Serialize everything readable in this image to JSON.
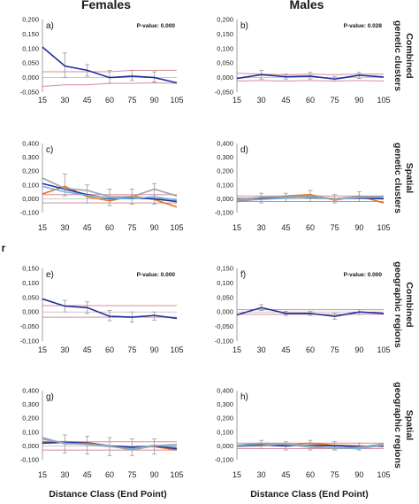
{
  "figure": {
    "col_titles": [
      "Females",
      "Males"
    ],
    "row_titles": [
      [
        "Combined",
        "genetic clusters"
      ],
      [
        "Spatial",
        "genetic clusters"
      ],
      [
        "Combined",
        "geographic regions"
      ],
      [
        "Spatial",
        "geographic regions"
      ]
    ],
    "x_axis_title": "Distance Class (End Point)",
    "y_axis_symbol": "r",
    "colors": {
      "dark_blue": "#1f2f9e",
      "orange": "#e8731e",
      "light_blue": "#6fb3e0",
      "gray": "#9aa3ad",
      "confidence": "#d98b9a"
    }
  },
  "chart_data": [
    {
      "type": "line",
      "label": "a)",
      "pvalue": "P-value: 0.000",
      "x": [
        15,
        30,
        45,
        60,
        75,
        90,
        105
      ],
      "ylim": [
        -0.05,
        0.2
      ],
      "yticks": [
        "0,200",
        "0,150",
        "0,100",
        "0,050",
        "0,000",
        "-0,050"
      ],
      "series": [
        {
          "color": "#1f2f9e",
          "values": [
            0.105,
            0.04,
            0.025,
            0.0,
            0.005,
            0.0,
            -0.018
          ]
        }
      ],
      "error_bars": [
        [
          null,
          null
        ],
        [
          0.0,
          0.085
        ],
        [
          0.005,
          0.045
        ],
        [
          -0.02,
          0.025
        ],
        [
          -0.01,
          0.025
        ],
        [
          -0.015,
          0.02
        ],
        [
          null,
          null
        ]
      ],
      "confidence": [
        [
          0.02,
          0.02,
          0.02,
          0.02,
          0.025,
          0.025,
          0.025
        ],
        [
          -0.03,
          -0.025,
          -0.025,
          -0.02,
          -0.02,
          -0.018,
          -0.02
        ]
      ]
    },
    {
      "type": "line",
      "label": "b)",
      "pvalue": "P-value: 0.028",
      "x": [
        15,
        30,
        45,
        60,
        75,
        90,
        105
      ],
      "ylim": [
        -0.05,
        0.2
      ],
      "yticks": [
        "0,200",
        "0,150",
        "0,100",
        "0,050",
        "0,000",
        "-0,050"
      ],
      "series": [
        {
          "color": "#1f2f9e",
          "values": [
            -0.003,
            0.01,
            0.003,
            0.005,
            -0.005,
            0.008,
            0.002
          ]
        }
      ],
      "error_bars": [
        [
          null,
          null
        ],
        [
          -0.005,
          0.025
        ],
        [
          -0.005,
          0.012
        ],
        [
          -0.005,
          0.018
        ],
        [
          -0.012,
          0.003
        ],
        [
          -0.003,
          0.018
        ],
        [
          null,
          null
        ]
      ],
      "confidence": [
        [
          0.015,
          0.012,
          0.01,
          0.012,
          0.01,
          0.012,
          0.012
        ],
        [
          -0.012,
          -0.01,
          -0.012,
          -0.01,
          -0.012,
          -0.01,
          -0.012
        ]
      ]
    },
    {
      "type": "line",
      "label": "c)",
      "pvalue": "",
      "x": [
        15,
        30,
        45,
        60,
        75,
        90,
        105
      ],
      "ylim": [
        -0.1,
        0.4
      ],
      "yticks": [
        "0,400",
        "0,300",
        "0,200",
        "0,100",
        "0,000",
        "-0,100"
      ],
      "series": [
        {
          "color": "#e8731e",
          "values": [
            0.035,
            0.09,
            0.015,
            -0.015,
            0.02,
            -0.005,
            -0.06
          ]
        },
        {
          "color": "#1f2f9e",
          "values": [
            0.11,
            0.07,
            0.03,
            0.0,
            0.005,
            0.0,
            -0.02
          ]
        },
        {
          "color": "#6fb3e0",
          "values": [
            0.09,
            0.05,
            0.025,
            0.005,
            0.0,
            0.015,
            -0.01
          ]
        },
        {
          "color": "#9aa3ad",
          "values": [
            0.15,
            0.075,
            0.06,
            0.015,
            0.015,
            0.07,
            0.02
          ]
        }
      ],
      "error_bars": [
        [
          null,
          null
        ],
        [
          0.02,
          0.18
        ],
        [
          -0.03,
          0.1
        ],
        [
          -0.05,
          0.07
        ],
        [
          -0.04,
          0.07
        ],
        [
          -0.04,
          0.11
        ],
        [
          null,
          null
        ]
      ],
      "confidence": [
        [
          0.03,
          0.03,
          0.03,
          0.03,
          0.03,
          0.03,
          0.03
        ],
        [
          -0.03,
          -0.03,
          -0.03,
          -0.03,
          -0.03,
          -0.03,
          -0.03
        ]
      ]
    },
    {
      "type": "line",
      "label": "d)",
      "pvalue": "",
      "x": [
        15,
        30,
        45,
        60,
        75,
        90,
        105
      ],
      "ylim": [
        -0.1,
        0.4
      ],
      "yticks": [
        "0,400",
        "0,300",
        "0,200",
        "0,100",
        "0,000",
        "-0,100"
      ],
      "series": [
        {
          "color": "#e8731e",
          "values": [
            -0.02,
            0.0,
            0.02,
            0.03,
            -0.01,
            0.02,
            -0.03
          ]
        },
        {
          "color": "#1f2f9e",
          "values": [
            0.0,
            0.005,
            0.01,
            0.01,
            0.0,
            0.005,
            0.0
          ]
        },
        {
          "color": "#6fb3e0",
          "values": [
            -0.01,
            -0.005,
            0.005,
            0.015,
            -0.005,
            0.01,
            0.01
          ]
        },
        {
          "color": "#9aa3ad",
          "values": [
            -0.005,
            0.01,
            0.015,
            0.02,
            0.0,
            0.015,
            0.015
          ]
        }
      ],
      "error_bars": [
        [
          null,
          null
        ],
        [
          -0.03,
          0.04
        ],
        [
          -0.02,
          0.04
        ],
        [
          -0.02,
          0.06
        ],
        [
          -0.03,
          0.03
        ],
        [
          -0.02,
          0.05
        ],
        [
          null,
          null
        ]
      ],
      "confidence": [
        [
          0.02,
          0.02,
          0.02,
          0.02,
          0.02,
          0.02,
          0.02
        ],
        [
          -0.02,
          -0.02,
          -0.02,
          -0.02,
          -0.02,
          -0.02,
          -0.02
        ]
      ]
    },
    {
      "type": "line",
      "label": "e)",
      "pvalue": "P-value: 0.000",
      "x": [
        15,
        30,
        45,
        60,
        75,
        90,
        105
      ],
      "ylim": [
        -0.1,
        0.15
      ],
      "yticks": [
        "0,150",
        "0,100",
        "0,050",
        "0,000",
        "-0,050",
        "-0,100"
      ],
      "series": [
        {
          "color": "#1f2f9e",
          "values": [
            0.045,
            0.02,
            0.015,
            -0.015,
            -0.018,
            -0.012,
            -0.022
          ]
        }
      ],
      "error_bars": [
        [
          null,
          null
        ],
        [
          0.0,
          0.04
        ],
        [
          -0.005,
          0.035
        ],
        [
          -0.03,
          0.005
        ],
        [
          -0.035,
          0.0
        ],
        [
          -0.028,
          0.0
        ],
        [
          null,
          null
        ]
      ],
      "confidence": [
        [
          0.022,
          0.022,
          0.022,
          0.022,
          0.022,
          0.022,
          0.022
        ],
        [
          -0.018,
          -0.018,
          -0.018,
          -0.018,
          -0.018,
          -0.018,
          -0.018
        ]
      ]
    },
    {
      "type": "line",
      "label": "f)",
      "pvalue": "P-value: 0.000",
      "x": [
        15,
        30,
        45,
        60,
        75,
        90,
        105
      ],
      "ylim": [
        -0.1,
        0.15
      ],
      "yticks": [
        "0,150",
        "0,100",
        "0,050",
        "0,000",
        "-0,050",
        "-0,100"
      ],
      "series": [
        {
          "color": "#1f2f9e",
          "values": [
            -0.01,
            0.015,
            -0.005,
            -0.005,
            -0.015,
            0.0,
            -0.005
          ]
        }
      ],
      "error_bars": [
        [
          null,
          null
        ],
        [
          0.005,
          0.025
        ],
        [
          -0.012,
          0.002
        ],
        [
          -0.012,
          0.002
        ],
        [
          -0.025,
          -0.005
        ],
        [
          -0.008,
          0.008
        ],
        [
          null,
          null
        ]
      ],
      "confidence": [
        [
          0.008,
          0.008,
          0.008,
          0.008,
          0.008,
          0.008,
          0.008
        ],
        [
          -0.008,
          -0.008,
          -0.008,
          -0.008,
          -0.008,
          -0.008,
          -0.008
        ]
      ]
    },
    {
      "type": "line",
      "label": "g)",
      "pvalue": "",
      "x": [
        15,
        30,
        45,
        60,
        75,
        90,
        105
      ],
      "ylim": [
        -0.1,
        0.4
      ],
      "yticks": [
        "0,400",
        "0,300",
        "0,200",
        "0,100",
        "0,000",
        "-0,100"
      ],
      "series": [
        {
          "color": "#e8731e",
          "values": [
            0.03,
            0.03,
            0.025,
            0.0,
            -0.01,
            -0.005,
            -0.03
          ]
        },
        {
          "color": "#1f2f9e",
          "values": [
            0.02,
            0.025,
            0.02,
            0.0,
            -0.01,
            0.0,
            -0.02
          ]
        },
        {
          "color": "#6fb3e0",
          "values": [
            0.05,
            0.02,
            0.01,
            -0.005,
            -0.02,
            0.005,
            -0.01
          ]
        },
        {
          "color": "#9aa3ad",
          "values": [
            0.06,
            0.015,
            0.015,
            0.0,
            -0.03,
            0.0,
            0.01
          ]
        }
      ],
      "error_bars": [
        [
          null,
          null
        ],
        [
          -0.05,
          0.08
        ],
        [
          -0.06,
          0.07
        ],
        [
          -0.07,
          0.06
        ],
        [
          -0.07,
          0.05
        ],
        [
          -0.06,
          0.05
        ],
        [
          null,
          null
        ]
      ],
      "confidence": [
        [
          0.03,
          0.03,
          0.03,
          0.03,
          0.03,
          0.03,
          0.03
        ],
        [
          -0.03,
          -0.03,
          -0.03,
          -0.03,
          -0.03,
          -0.03,
          -0.03
        ]
      ]
    },
    {
      "type": "line",
      "label": "h)",
      "pvalue": "",
      "x": [
        15,
        30,
        45,
        60,
        75,
        90,
        105
      ],
      "ylim": [
        -0.1,
        0.4
      ],
      "yticks": [
        "0,400",
        "0,300",
        "0,200",
        "0,100",
        "0,000",
        "-0,100"
      ],
      "series": [
        {
          "color": "#e8731e",
          "values": [
            0.0,
            0.01,
            0.005,
            0.02,
            0.005,
            0.0,
            -0.005
          ]
        },
        {
          "color": "#1f2f9e",
          "values": [
            0.0,
            0.005,
            0.0,
            0.005,
            0.0,
            -0.005,
            0.0
          ]
        },
        {
          "color": "#6fb3e0",
          "values": [
            0.005,
            0.02,
            0.01,
            -0.01,
            -0.015,
            -0.02,
            0.005
          ]
        },
        {
          "color": "#9aa3ad",
          "values": [
            -0.005,
            0.0,
            0.015,
            0.0,
            -0.02,
            -0.01,
            0.015
          ]
        }
      ],
      "error_bars": [
        [
          null,
          null
        ],
        [
          -0.02,
          0.04
        ],
        [
          -0.03,
          0.03
        ],
        [
          -0.03,
          0.04
        ],
        [
          -0.03,
          0.03
        ],
        [
          -0.03,
          0.02
        ],
        [
          null,
          null
        ]
      ],
      "confidence": [
        [
          0.02,
          0.02,
          0.02,
          0.02,
          0.02,
          0.02,
          0.02
        ],
        [
          -0.02,
          -0.02,
          -0.02,
          -0.02,
          -0.02,
          -0.02,
          -0.02
        ]
      ]
    }
  ]
}
